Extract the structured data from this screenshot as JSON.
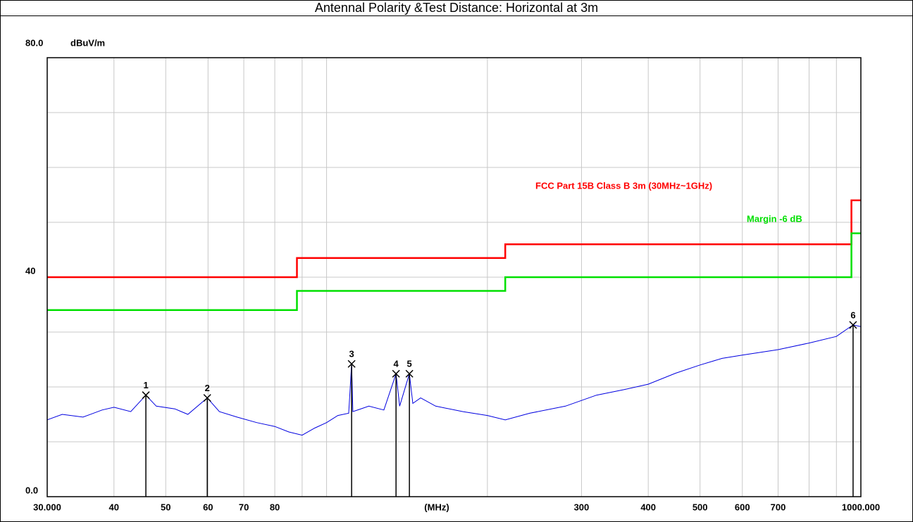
{
  "chart_data": {
    "type": "line",
    "title": "Antennal Polarity &Test Distance: Horizontal at 3m",
    "y_label": "dBuV/m",
    "x_label": "(MHz)",
    "log_x": true,
    "grid": true,
    "xlim": [
      30,
      1000
    ],
    "ylim": [
      0,
      80
    ],
    "yticks": [
      {
        "value": 0,
        "label": "0.0"
      },
      40,
      {
        "value": 80,
        "label": "80.0"
      }
    ],
    "ygrid": [
      10,
      20,
      30,
      50,
      60,
      70
    ],
    "xticks": [
      {
        "value": 30,
        "label": "30.000"
      },
      40,
      50,
      60,
      70,
      80,
      300,
      400,
      500,
      600,
      700,
      {
        "value": 1000,
        "label": "1000.000"
      }
    ],
    "xminor": [
      90,
      100,
      200,
      800,
      900
    ],
    "series": [
      {
        "name": "FCC Part 15B Class B 3m (30MHz~1GHz)",
        "color": "#ff0000",
        "x": [
          30,
          88,
          88,
          216,
          216,
          960,
          960,
          1000
        ],
        "values": [
          40,
          40,
          43.5,
          43.5,
          46,
          46,
          54,
          54
        ]
      },
      {
        "name": "Margin -6 dB",
        "color": "#00e000",
        "x": [
          30,
          88,
          88,
          216,
          216,
          960,
          960,
          1000
        ],
        "values": [
          34,
          34,
          37.5,
          37.5,
          40,
          40,
          48,
          48
        ]
      },
      {
        "name": null,
        "color": "#0000e0",
        "x": [
          30,
          32,
          35,
          38,
          40,
          43,
          45.9,
          48,
          52,
          55,
          59.8,
          63,
          68,
          74,
          80,
          85,
          90,
          95,
          100,
          105,
          110,
          111.4,
          112,
          120,
          128,
          134.9,
          137,
          142.9,
          145,
          150,
          160,
          180,
          200,
          216,
          240,
          280,
          320,
          360,
          400,
          450,
          500,
          550,
          600,
          700,
          800,
          900,
          967,
          1000
        ],
        "values": [
          14.0,
          15.0,
          14.5,
          15.8,
          16.3,
          15.5,
          18.5,
          16.5,
          16.0,
          15.0,
          18.0,
          15.5,
          14.5,
          13.5,
          12.8,
          11.8,
          11.2,
          12.5,
          13.5,
          14.8,
          15.2,
          24.2,
          15.5,
          16.5,
          15.8,
          22.4,
          16.5,
          22.4,
          17.0,
          18.0,
          16.5,
          15.5,
          14.8,
          14.0,
          15.2,
          16.5,
          18.5,
          19.5,
          20.5,
          22.5,
          24.0,
          25.2,
          25.8,
          26.8,
          28.0,
          29.2,
          31.3,
          31.0
        ]
      }
    ],
    "markers": [
      {
        "label": "1",
        "x": 45.9,
        "value": 18.5
      },
      {
        "label": "2",
        "x": 59.8,
        "value": 18.0
      },
      {
        "label": "3",
        "x": 111.4,
        "value": 24.2
      },
      {
        "label": "4",
        "x": 134.9,
        "value": 22.4
      },
      {
        "label": "5",
        "x": 142.9,
        "value": 22.4
      },
      {
        "label": "6",
        "x": 967,
        "value": 31.3
      }
    ]
  }
}
